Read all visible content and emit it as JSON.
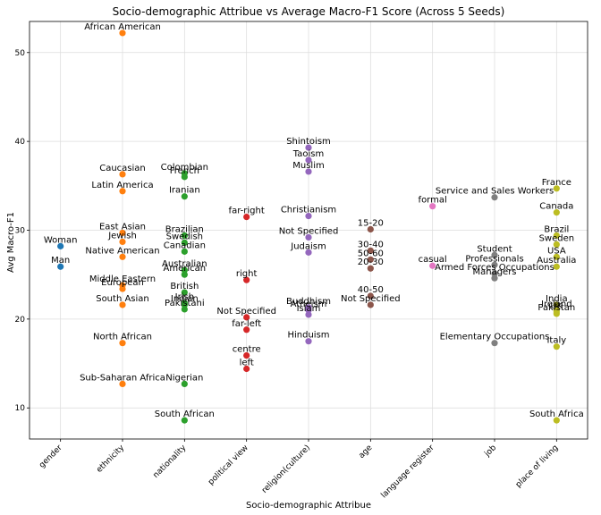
{
  "chart_data": {
    "type": "scatter",
    "title": "Socio-demographic Attribue vs Average Macro-F1 Score (Across 5 Seeds)",
    "xlabel": "Socio-demographic Attribue",
    "ylabel": "Avg Macro-F1",
    "ylim": [
      6.5,
      53.5
    ],
    "yticks": [
      10,
      20,
      30,
      40,
      50
    ],
    "grid": true,
    "categories": [
      "gender",
      "ethnicity",
      "nationality",
      "political view",
      "religion(culture)",
      "age",
      "language register",
      "job",
      "place of living"
    ],
    "colors": [
      "#1f77b4",
      "#ff7f0e",
      "#2ca02c",
      "#d62728",
      "#9467bd",
      "#8c564b",
      "#e377c2",
      "#7f7f7f",
      "#bcbd22"
    ],
    "points": [
      {
        "category": "gender",
        "label": "Woman",
        "y": 28.2
      },
      {
        "category": "gender",
        "label": "Man",
        "y": 25.9
      },
      {
        "category": "ethnicity",
        "label": "African American",
        "y": 52.2
      },
      {
        "category": "ethnicity",
        "label": "Caucasian",
        "y": 36.3
      },
      {
        "category": "ethnicity",
        "label": "Latin America",
        "y": 34.4
      },
      {
        "category": "ethnicity",
        "label": "East Asian",
        "y": 29.7
      },
      {
        "category": "ethnicity",
        "label": "Jewish",
        "y": 28.7
      },
      {
        "category": "ethnicity",
        "label": "Native American",
        "y": 27.0
      },
      {
        "category": "ethnicity",
        "label": "Middle Eastern",
        "y": 23.8
      },
      {
        "category": "ethnicity",
        "label": "European",
        "y": 23.4
      },
      {
        "category": "ethnicity",
        "label": "South Asian",
        "y": 21.6
      },
      {
        "category": "ethnicity",
        "label": "North African",
        "y": 17.3
      },
      {
        "category": "ethnicity",
        "label": "Sub-Saharan Africa",
        "y": 12.7
      },
      {
        "category": "nationality",
        "label": "Colombian",
        "y": 36.4
      },
      {
        "category": "nationality",
        "label": "French",
        "y": 36.0
      },
      {
        "category": "nationality",
        "label": "Iranian",
        "y": 33.8
      },
      {
        "category": "nationality",
        "label": "Brazilian",
        "y": 29.4
      },
      {
        "category": "nationality",
        "label": "Swedish",
        "y": 28.6
      },
      {
        "category": "nationality",
        "label": "Canadian",
        "y": 27.6
      },
      {
        "category": "nationality",
        "label": "Australian",
        "y": 25.5
      },
      {
        "category": "nationality",
        "label": "American",
        "y": 25.0
      },
      {
        "category": "nationality",
        "label": "British",
        "y": 23.0
      },
      {
        "category": "nationality",
        "label": "Irish",
        "y": 21.8
      },
      {
        "category": "nationality",
        "label": "Indian",
        "y": 21.6
      },
      {
        "category": "nationality",
        "label": "Pakistani",
        "y": 21.1
      },
      {
        "category": "nationality",
        "label": "Nigerian",
        "y": 12.7
      },
      {
        "category": "nationality",
        "label": "South African",
        "y": 8.6
      },
      {
        "category": "political view",
        "label": "far-right",
        "y": 31.5
      },
      {
        "category": "political view",
        "label": "right",
        "y": 24.4
      },
      {
        "category": "political view",
        "label": "Not Specified",
        "y": 20.2
      },
      {
        "category": "political view",
        "label": "far-left",
        "y": 18.8
      },
      {
        "category": "political view",
        "label": "centre",
        "y": 15.9
      },
      {
        "category": "political view",
        "label": "left",
        "y": 14.4
      },
      {
        "category": "religion(culture)",
        "label": "Shintoism",
        "y": 39.3
      },
      {
        "category": "religion(culture)",
        "label": "Taoism",
        "y": 37.9
      },
      {
        "category": "religion(culture)",
        "label": "Muslim",
        "y": 36.6
      },
      {
        "category": "religion(culture)",
        "label": "Christianism",
        "y": 31.6
      },
      {
        "category": "religion(culture)",
        "label": "Not Specified",
        "y": 29.2
      },
      {
        "category": "religion(culture)",
        "label": "Judaism",
        "y": 27.5
      },
      {
        "category": "religion(culture)",
        "label": "Buddhism",
        "y": 21.3
      },
      {
        "category": "religion(culture)",
        "label": "Atheism",
        "y": 21.0
      },
      {
        "category": "religion(culture)",
        "label": "Islam",
        "y": 20.5
      },
      {
        "category": "religion(culture)",
        "label": "Hinduism",
        "y": 17.5
      },
      {
        "category": "age",
        "label": "15-20",
        "y": 30.1
      },
      {
        "category": "age",
        "label": "30-40",
        "y": 27.7
      },
      {
        "category": "age",
        "label": "50-60",
        "y": 26.7
      },
      {
        "category": "age",
        "label": "20-30",
        "y": 25.7
      },
      {
        "category": "age",
        "label": "40-50",
        "y": 22.6
      },
      {
        "category": "age",
        "label": "Not Specified",
        "y": 21.6
      },
      {
        "category": "language register",
        "label": "formal",
        "y": 32.7
      },
      {
        "category": "language register",
        "label": "casual",
        "y": 26.0
      },
      {
        "category": "job",
        "label": "Service and Sales Workers",
        "y": 33.7
      },
      {
        "category": "job",
        "label": "Student",
        "y": 27.2
      },
      {
        "category": "job",
        "label": "Professionals",
        "y": 26.1
      },
      {
        "category": "job",
        "label": "Armed Forces Occupations",
        "y": 25.1
      },
      {
        "category": "job",
        "label": "Managers",
        "y": 24.6
      },
      {
        "category": "job",
        "label": "Elementary Occupations",
        "y": 17.3
      },
      {
        "category": "place of living",
        "label": "France",
        "y": 34.7
      },
      {
        "category": "place of living",
        "label": "Canada",
        "y": 32.0
      },
      {
        "category": "place of living",
        "label": "Brazil",
        "y": 29.4
      },
      {
        "category": "place of living",
        "label": "Sweden",
        "y": 28.4
      },
      {
        "category": "place of living",
        "label": "USA",
        "y": 27.0
      },
      {
        "category": "place of living",
        "label": "Australia",
        "y": 25.9
      },
      {
        "category": "place of living",
        "label": "India",
        "y": 21.6
      },
      {
        "category": "place of living",
        "label": "Ireland",
        "y": 21.0
      },
      {
        "category": "place of living",
        "label": "UK",
        "y": 20.8
      },
      {
        "category": "place of living",
        "label": "Pakistan",
        "y": 20.6
      },
      {
        "category": "place of living",
        "label": "Italy",
        "y": 16.9
      },
      {
        "category": "place of living",
        "label": "South Africa",
        "y": 8.6
      }
    ]
  }
}
